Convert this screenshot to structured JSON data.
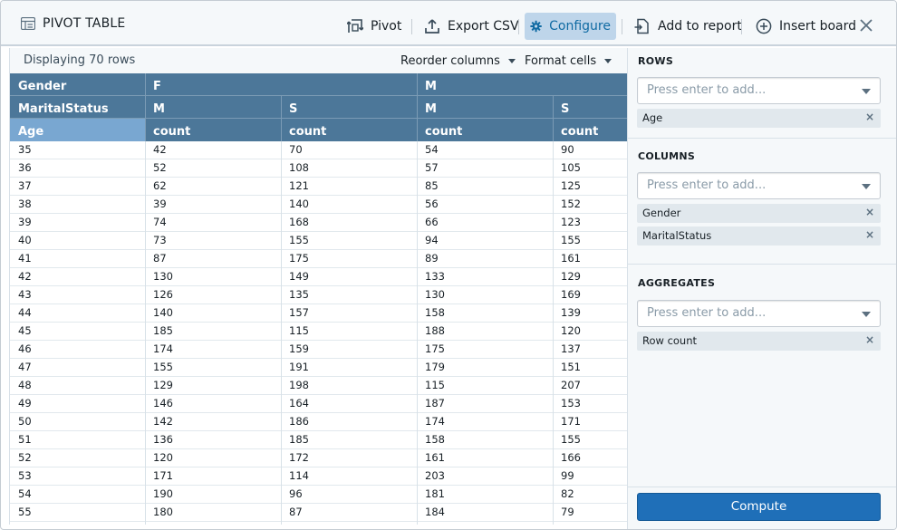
{
  "header": {
    "title": "PIVOT TABLE",
    "buttons": {
      "pivot": "Pivot",
      "export_csv": "Export CSV",
      "configure": "Configure",
      "add_to_report": "Add to report",
      "insert_board": "Insert board"
    },
    "icons": {
      "title": "table-icon",
      "pivot": "pivot-icon",
      "export": "export-icon",
      "configure": "gear-icon",
      "add_to_report": "add-to-report-icon",
      "insert_board": "add-circle-icon",
      "close": "close-icon"
    }
  },
  "toolbar": {
    "displaying": "Displaying 70 rows",
    "reorder_columns": "Reorder columns",
    "format_cells": "Format cells"
  },
  "table": {
    "gender_label": "Gender",
    "gender_values": [
      "F",
      "M"
    ],
    "marital_label": "MaritalStatus",
    "marital_values": [
      "M",
      "S",
      "M",
      "S"
    ],
    "age_label": "Age",
    "measure_labels": [
      "count",
      "count",
      "count",
      "count"
    ],
    "rows": [
      [
        "35",
        "42",
        "70",
        "54",
        "90"
      ],
      [
        "36",
        "52",
        "108",
        "57",
        "105"
      ],
      [
        "37",
        "62",
        "121",
        "85",
        "125"
      ],
      [
        "38",
        "39",
        "140",
        "56",
        "152"
      ],
      [
        "39",
        "74",
        "168",
        "66",
        "123"
      ],
      [
        "40",
        "73",
        "155",
        "94",
        "155"
      ],
      [
        "41",
        "87",
        "175",
        "89",
        "161"
      ],
      [
        "42",
        "130",
        "149",
        "133",
        "129"
      ],
      [
        "43",
        "126",
        "135",
        "130",
        "169"
      ],
      [
        "44",
        "140",
        "157",
        "158",
        "139"
      ],
      [
        "45",
        "185",
        "115",
        "188",
        "120"
      ],
      [
        "46",
        "174",
        "159",
        "175",
        "137"
      ],
      [
        "47",
        "155",
        "191",
        "179",
        "151"
      ],
      [
        "48",
        "129",
        "198",
        "115",
        "207"
      ],
      [
        "49",
        "146",
        "164",
        "187",
        "153"
      ],
      [
        "50",
        "142",
        "186",
        "174",
        "171"
      ],
      [
        "51",
        "136",
        "185",
        "158",
        "155"
      ],
      [
        "52",
        "120",
        "172",
        "161",
        "166"
      ],
      [
        "53",
        "171",
        "114",
        "203",
        "99"
      ],
      [
        "54",
        "190",
        "96",
        "181",
        "82"
      ],
      [
        "55",
        "180",
        "87",
        "184",
        "79"
      ]
    ]
  },
  "panel": {
    "rows": {
      "title": "ROWS",
      "placeholder": "Press enter to add...",
      "tags": [
        "Age"
      ]
    },
    "columns": {
      "title": "COLUMNS",
      "placeholder": "Press enter to add...",
      "tags": [
        "Gender",
        "MaritalStatus"
      ]
    },
    "aggregates": {
      "title": "AGGREGATES",
      "placeholder": "Press enter to add...",
      "tags": [
        "Row count"
      ]
    },
    "compute": "Compute",
    "tag_remove": "×"
  },
  "colors": {
    "header_blue": "#4c7799",
    "age_highlight": "#79a7d1",
    "active_button": "#bed5ea",
    "primary": "#1f6fb8"
  }
}
